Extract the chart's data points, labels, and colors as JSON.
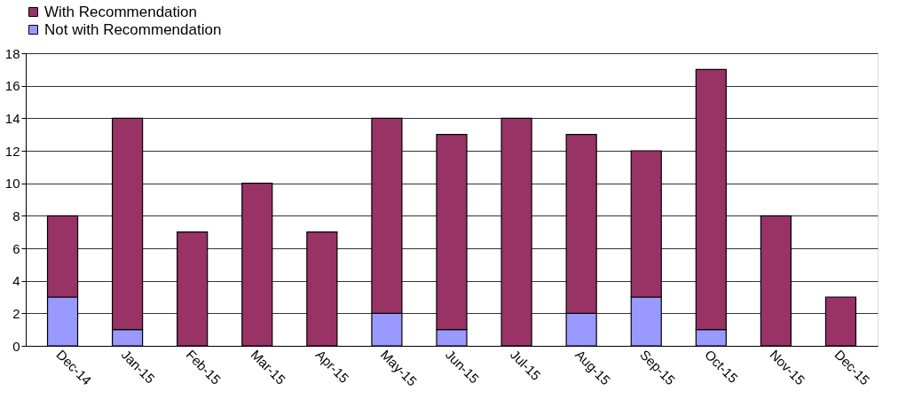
{
  "chart_data": {
    "type": "bar",
    "stacked": true,
    "categories": [
      "Dec-14",
      "Jan-15",
      "Feb-15",
      "Mar-15",
      "Apr-15",
      "May-15",
      "Jun-15",
      "Jul-15",
      "Aug-15",
      "Sep-15",
      "Oct-15",
      "Nov-15",
      "Dec-15"
    ],
    "series": [
      {
        "name": "Not with Recommendation",
        "color": "#9999ff",
        "values": [
          3,
          1,
          0,
          0,
          0,
          2,
          1,
          0,
          2,
          3,
          1,
          0,
          0
        ]
      },
      {
        "name": "With Recommendation",
        "color": "#993366",
        "values": [
          5,
          13,
          7,
          10,
          7,
          12,
          12,
          14,
          11,
          9,
          16,
          8,
          3
        ]
      }
    ],
    "ylim": [
      0,
      18
    ],
    "yticks": [
      0,
      2,
      4,
      6,
      8,
      10,
      12,
      14,
      16,
      18
    ],
    "grid": "y",
    "legend": "top"
  }
}
